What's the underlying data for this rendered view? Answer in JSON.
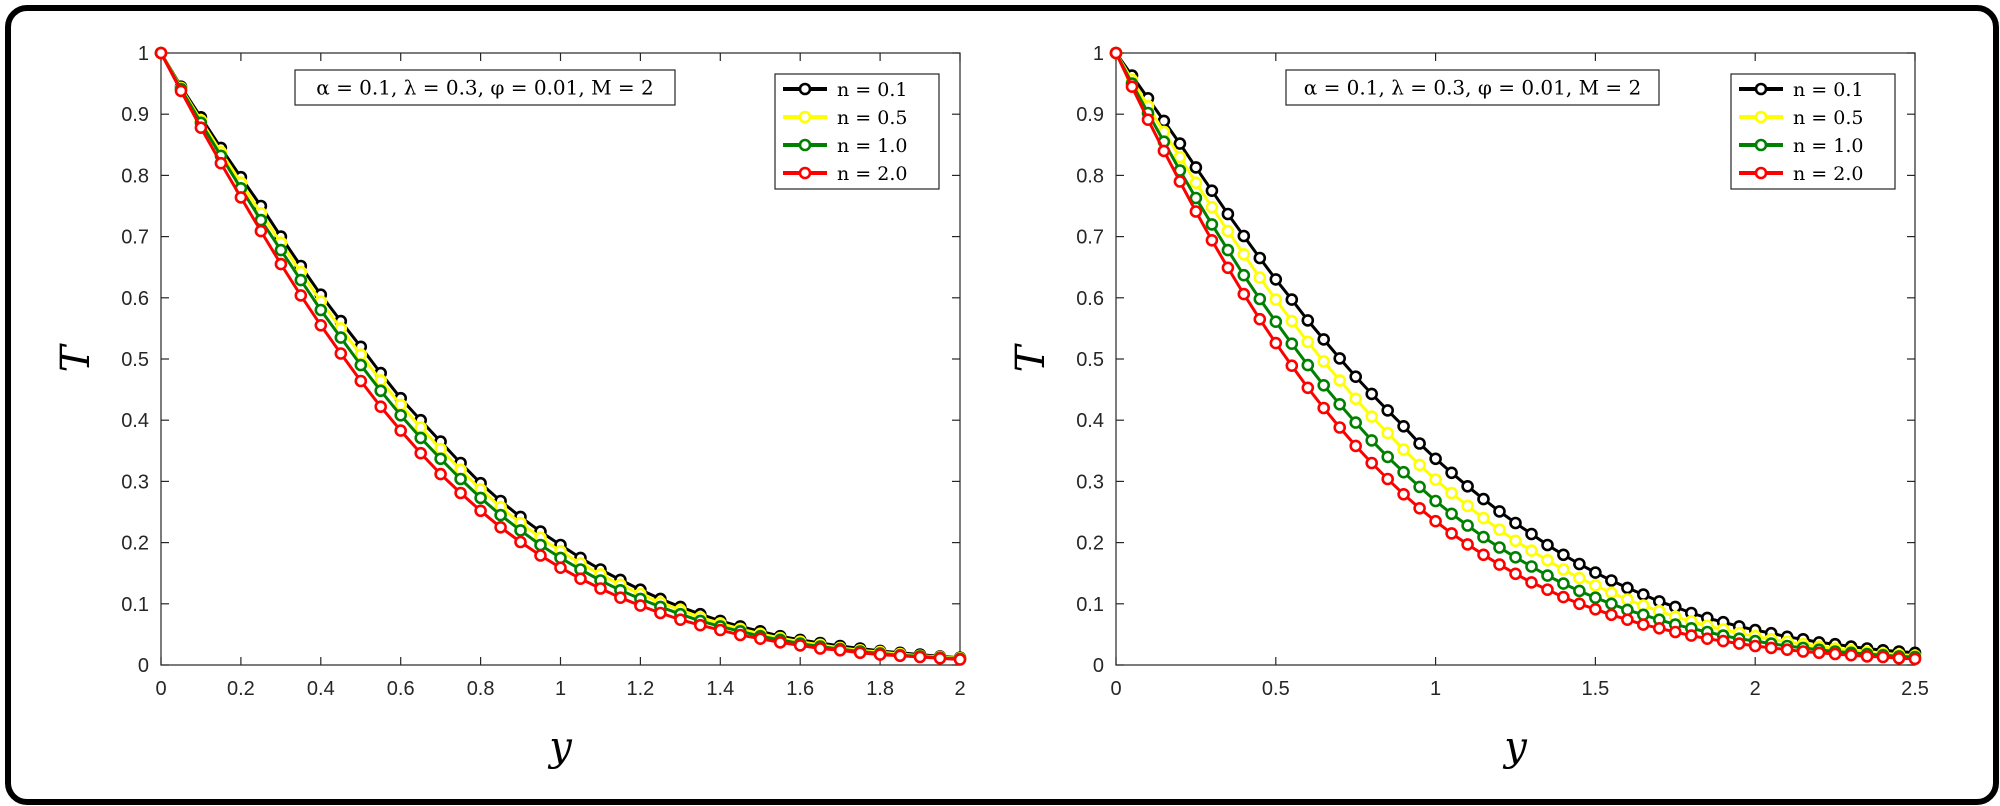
{
  "params_label": "α = 0.1, λ = 0.3, φ = 0.01, M = 2",
  "colors": {
    "n = 0.1": "#000000",
    "n = 0.5": "#ffff00",
    "n = 1.0": "#008000",
    "n = 2.0": "#ff0000"
  },
  "chart_data": [
    {
      "type": "line",
      "xlabel": "y",
      "ylabel": "T",
      "xlim": [
        0,
        2
      ],
      "ylim": [
        0,
        1
      ],
      "xticks": [
        "0",
        "0.2",
        "0.4",
        "0.6",
        "0.8",
        "1",
        "1.2",
        "1.4",
        "1.6",
        "1.8",
        "2"
      ],
      "yticks": [
        "0",
        "0.1",
        "0.2",
        "0.3",
        "0.4",
        "0.5",
        "0.6",
        "0.7",
        "0.8",
        "0.9",
        "1"
      ],
      "grid": false,
      "legend_position": "top-right",
      "annotation": "α = 0.1, λ = 0.3, φ = 0.01, M = 2",
      "series": [
        {
          "name": "n = 0.1",
          "color": "#000000",
          "x": [
            0,
            0.05,
            0.1,
            0.15,
            0.2,
            0.25,
            0.3,
            0.35,
            0.4,
            0.45,
            0.5,
            0.55,
            0.6,
            0.65,
            0.7,
            0.75,
            0.8,
            0.85,
            0.9,
            0.95,
            1,
            1.05,
            1.1,
            1.15,
            1.2,
            1.25,
            1.3,
            1.35,
            1.4,
            1.45,
            1.5,
            1.55,
            1.6,
            1.65,
            1.7,
            1.75,
            1.8,
            1.85,
            1.9,
            1.95,
            2
          ],
          "y": [
            1,
            0.945,
            0.895,
            0.845,
            0.797,
            0.75,
            0.7,
            0.652,
            0.605,
            0.562,
            0.52,
            0.477,
            0.436,
            0.4,
            0.365,
            0.33,
            0.297,
            0.268,
            0.242,
            0.218,
            0.196,
            0.175,
            0.156,
            0.139,
            0.123,
            0.108,
            0.095,
            0.083,
            0.072,
            0.063,
            0.055,
            0.047,
            0.041,
            0.036,
            0.031,
            0.027,
            0.023,
            0.02,
            0.017,
            0.014,
            0.012
          ]
        },
        {
          "name": "n = 0.5",
          "color": "#ffff00",
          "x": [
            0,
            0.05,
            0.1,
            0.15,
            0.2,
            0.25,
            0.3,
            0.35,
            0.4,
            0.45,
            0.5,
            0.55,
            0.6,
            0.65,
            0.7,
            0.75,
            0.8,
            0.85,
            0.9,
            0.95,
            1,
            1.05,
            1.1,
            1.15,
            1.2,
            1.25,
            1.3,
            1.35,
            1.4,
            1.45,
            1.5,
            1.55,
            1.6,
            1.65,
            1.7,
            1.75,
            1.8,
            1.85,
            1.9,
            1.95,
            2
          ],
          "y": [
            1,
            0.943,
            0.89,
            0.838,
            0.788,
            0.738,
            0.69,
            0.642,
            0.594,
            0.55,
            0.507,
            0.465,
            0.425,
            0.388,
            0.353,
            0.319,
            0.287,
            0.258,
            0.232,
            0.208,
            0.186,
            0.166,
            0.148,
            0.131,
            0.116,
            0.102,
            0.09,
            0.078,
            0.068,
            0.059,
            0.051,
            0.044,
            0.038,
            0.033,
            0.028,
            0.024,
            0.021,
            0.018,
            0.015,
            0.013,
            0.011
          ]
        },
        {
          "name": "n = 1.0",
          "color": "#008000",
          "x": [
            0,
            0.05,
            0.1,
            0.15,
            0.2,
            0.25,
            0.3,
            0.35,
            0.4,
            0.45,
            0.5,
            0.55,
            0.6,
            0.65,
            0.7,
            0.75,
            0.8,
            0.85,
            0.9,
            0.95,
            1,
            1.05,
            1.1,
            1.15,
            1.2,
            1.25,
            1.3,
            1.35,
            1.4,
            1.45,
            1.5,
            1.55,
            1.6,
            1.65,
            1.7,
            1.75,
            1.8,
            1.85,
            1.9,
            1.95,
            2
          ],
          "y": [
            1,
            0.941,
            0.886,
            0.832,
            0.779,
            0.727,
            0.678,
            0.629,
            0.58,
            0.535,
            0.49,
            0.448,
            0.408,
            0.371,
            0.337,
            0.304,
            0.273,
            0.245,
            0.22,
            0.196,
            0.175,
            0.156,
            0.138,
            0.122,
            0.108,
            0.095,
            0.083,
            0.072,
            0.063,
            0.055,
            0.047,
            0.041,
            0.035,
            0.03,
            0.026,
            0.022,
            0.019,
            0.016,
            0.014,
            0.012,
            0.01
          ]
        },
        {
          "name": "n = 2.0",
          "color": "#ff0000",
          "x": [
            0,
            0.05,
            0.1,
            0.15,
            0.2,
            0.25,
            0.3,
            0.35,
            0.4,
            0.45,
            0.5,
            0.55,
            0.6,
            0.65,
            0.7,
            0.75,
            0.8,
            0.85,
            0.9,
            0.95,
            1,
            1.05,
            1.1,
            1.15,
            1.2,
            1.25,
            1.3,
            1.35,
            1.4,
            1.45,
            1.5,
            1.55,
            1.6,
            1.65,
            1.7,
            1.75,
            1.8,
            1.85,
            1.9,
            1.95,
            2
          ],
          "y": [
            1,
            0.938,
            0.878,
            0.82,
            0.764,
            0.709,
            0.655,
            0.604,
            0.555,
            0.509,
            0.464,
            0.422,
            0.383,
            0.346,
            0.312,
            0.281,
            0.252,
            0.225,
            0.201,
            0.179,
            0.159,
            0.141,
            0.125,
            0.11,
            0.097,
            0.085,
            0.074,
            0.065,
            0.057,
            0.049,
            0.043,
            0.037,
            0.032,
            0.027,
            0.024,
            0.02,
            0.017,
            0.015,
            0.013,
            0.011,
            0.009
          ]
        }
      ]
    },
    {
      "type": "line",
      "xlabel": "y",
      "ylabel": "T",
      "xlim": [
        0,
        2.5
      ],
      "ylim": [
        0,
        1
      ],
      "xticks": [
        "0",
        "0.5",
        "1",
        "1.5",
        "2",
        "2.5"
      ],
      "yticks": [
        "0",
        "0.1",
        "0.2",
        "0.3",
        "0.4",
        "0.5",
        "0.6",
        "0.7",
        "0.8",
        "0.9",
        "1"
      ],
      "grid": false,
      "legend_position": "top-right",
      "annotation": "α = 0.1, λ = 0.3, φ = 0.01, M = 2",
      "series": [
        {
          "name": "n = 0.1",
          "color": "#000000",
          "x": [
            0,
            0.05,
            0.1,
            0.15,
            0.2,
            0.25,
            0.3,
            0.35,
            0.4,
            0.45,
            0.5,
            0.55,
            0.6,
            0.65,
            0.7,
            0.75,
            0.8,
            0.85,
            0.9,
            0.95,
            1,
            1.05,
            1.1,
            1.15,
            1.2,
            1.25,
            1.3,
            1.35,
            1.4,
            1.45,
            1.5,
            1.55,
            1.6,
            1.65,
            1.7,
            1.75,
            1.8,
            1.85,
            1.9,
            1.95,
            2,
            2.05,
            2.1,
            2.15,
            2.2,
            2.25,
            2.3,
            2.35,
            2.4,
            2.45,
            2.5
          ],
          "y": [
            1,
            0.963,
            0.926,
            0.889,
            0.852,
            0.813,
            0.775,
            0.737,
            0.701,
            0.665,
            0.63,
            0.597,
            0.563,
            0.532,
            0.501,
            0.471,
            0.443,
            0.416,
            0.39,
            0.362,
            0.337,
            0.314,
            0.292,
            0.271,
            0.251,
            0.232,
            0.214,
            0.196,
            0.18,
            0.165,
            0.151,
            0.138,
            0.126,
            0.115,
            0.104,
            0.095,
            0.085,
            0.077,
            0.07,
            0.063,
            0.057,
            0.052,
            0.046,
            0.042,
            0.037,
            0.034,
            0.03,
            0.027,
            0.024,
            0.022,
            0.02
          ]
        },
        {
          "name": "n = 0.5",
          "color": "#ffff00",
          "x": [
            0,
            0.05,
            0.1,
            0.15,
            0.2,
            0.25,
            0.3,
            0.35,
            0.4,
            0.45,
            0.5,
            0.55,
            0.6,
            0.65,
            0.7,
            0.75,
            0.8,
            0.85,
            0.9,
            0.95,
            1,
            1.05,
            1.1,
            1.15,
            1.2,
            1.25,
            1.3,
            1.35,
            1.4,
            1.45,
            1.5,
            1.55,
            1.6,
            1.65,
            1.7,
            1.75,
            1.8,
            1.85,
            1.9,
            1.95,
            2,
            2.05,
            2.1,
            2.15,
            2.2,
            2.25,
            2.3,
            2.35,
            2.4,
            2.45,
            2.5
          ],
          "y": [
            1,
            0.956,
            0.913,
            0.871,
            0.83,
            0.788,
            0.748,
            0.709,
            0.671,
            0.633,
            0.597,
            0.562,
            0.528,
            0.496,
            0.465,
            0.435,
            0.406,
            0.379,
            0.352,
            0.327,
            0.303,
            0.281,
            0.26,
            0.24,
            0.221,
            0.203,
            0.187,
            0.171,
            0.156,
            0.142,
            0.13,
            0.118,
            0.107,
            0.097,
            0.088,
            0.079,
            0.071,
            0.064,
            0.058,
            0.052,
            0.047,
            0.042,
            0.038,
            0.034,
            0.03,
            0.027,
            0.024,
            0.021,
            0.019,
            0.017,
            0.015
          ]
        },
        {
          "name": "n = 1.0",
          "color": "#008000",
          "x": [
            0,
            0.05,
            0.1,
            0.15,
            0.2,
            0.25,
            0.3,
            0.35,
            0.4,
            0.45,
            0.5,
            0.55,
            0.6,
            0.65,
            0.7,
            0.75,
            0.8,
            0.85,
            0.9,
            0.95,
            1,
            1.05,
            1.1,
            1.15,
            1.2,
            1.25,
            1.3,
            1.35,
            1.4,
            1.45,
            1.5,
            1.55,
            1.6,
            1.65,
            1.7,
            1.75,
            1.8,
            1.85,
            1.9,
            1.95,
            2,
            2.05,
            2.1,
            2.15,
            2.2,
            2.25,
            2.3,
            2.35,
            2.4,
            2.45,
            2.5
          ],
          "y": [
            1,
            0.95,
            0.902,
            0.855,
            0.808,
            0.763,
            0.72,
            0.678,
            0.637,
            0.598,
            0.561,
            0.525,
            0.49,
            0.457,
            0.426,
            0.396,
            0.367,
            0.34,
            0.315,
            0.291,
            0.268,
            0.247,
            0.228,
            0.209,
            0.192,
            0.176,
            0.161,
            0.146,
            0.133,
            0.121,
            0.11,
            0.1,
            0.09,
            0.082,
            0.074,
            0.066,
            0.06,
            0.054,
            0.048,
            0.043,
            0.039,
            0.035,
            0.031,
            0.028,
            0.025,
            0.022,
            0.02,
            0.018,
            0.016,
            0.014,
            0.013
          ]
        },
        {
          "name": "n = 2.0",
          "color": "#ff0000",
          "x": [
            0,
            0.05,
            0.1,
            0.15,
            0.2,
            0.25,
            0.3,
            0.35,
            0.4,
            0.45,
            0.5,
            0.55,
            0.6,
            0.65,
            0.7,
            0.75,
            0.8,
            0.85,
            0.9,
            0.95,
            1,
            1.05,
            1.1,
            1.15,
            1.2,
            1.25,
            1.3,
            1.35,
            1.4,
            1.45,
            1.5,
            1.55,
            1.6,
            1.65,
            1.7,
            1.75,
            1.8,
            1.85,
            1.9,
            1.95,
            2,
            2.05,
            2.1,
            2.15,
            2.2,
            2.25,
            2.3,
            2.35,
            2.4,
            2.45,
            2.5
          ],
          "y": [
            1,
            0.945,
            0.891,
            0.84,
            0.79,
            0.741,
            0.694,
            0.649,
            0.606,
            0.565,
            0.526,
            0.489,
            0.453,
            0.42,
            0.388,
            0.358,
            0.33,
            0.304,
            0.279,
            0.256,
            0.235,
            0.215,
            0.197,
            0.18,
            0.164,
            0.149,
            0.135,
            0.123,
            0.111,
            0.1,
            0.091,
            0.082,
            0.074,
            0.066,
            0.06,
            0.054,
            0.048,
            0.043,
            0.039,
            0.035,
            0.031,
            0.028,
            0.025,
            0.022,
            0.02,
            0.018,
            0.016,
            0.014,
            0.013,
            0.011,
            0.01
          ]
        }
      ]
    }
  ]
}
